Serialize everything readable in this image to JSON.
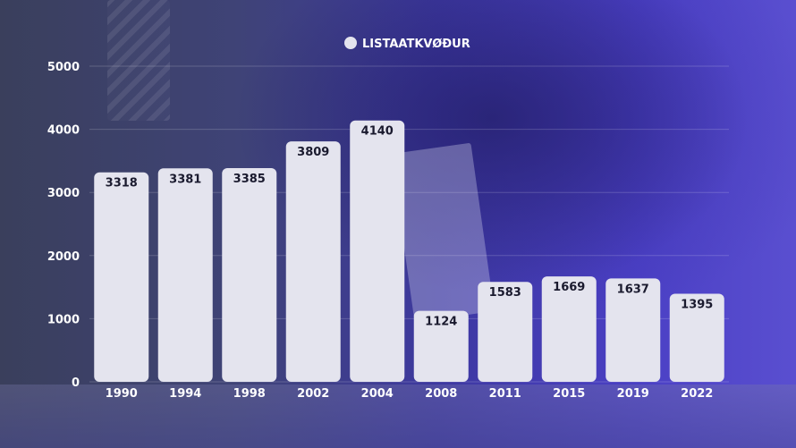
{
  "chart_data": {
    "type": "bar",
    "categories": [
      "1990",
      "1994",
      "1998",
      "2002",
      "2004",
      "2008",
      "2011",
      "2015",
      "2019",
      "2022"
    ],
    "series": [
      {
        "name": "LISTAATKVØÐUR",
        "values": [
          3318,
          3381,
          3385,
          3809,
          4140,
          1124,
          1583,
          1669,
          1637,
          1395
        ]
      }
    ],
    "yticks": [
      "0",
      "1000",
      "2000",
      "3000",
      "4000",
      "5000"
    ],
    "ylim": [
      0,
      5000
    ],
    "grid": true,
    "legend_position": "top-center",
    "colors": {
      "bar": "#e4e4ee",
      "label": "#1a1a2e",
      "axis_text": "#ffffff"
    }
  }
}
